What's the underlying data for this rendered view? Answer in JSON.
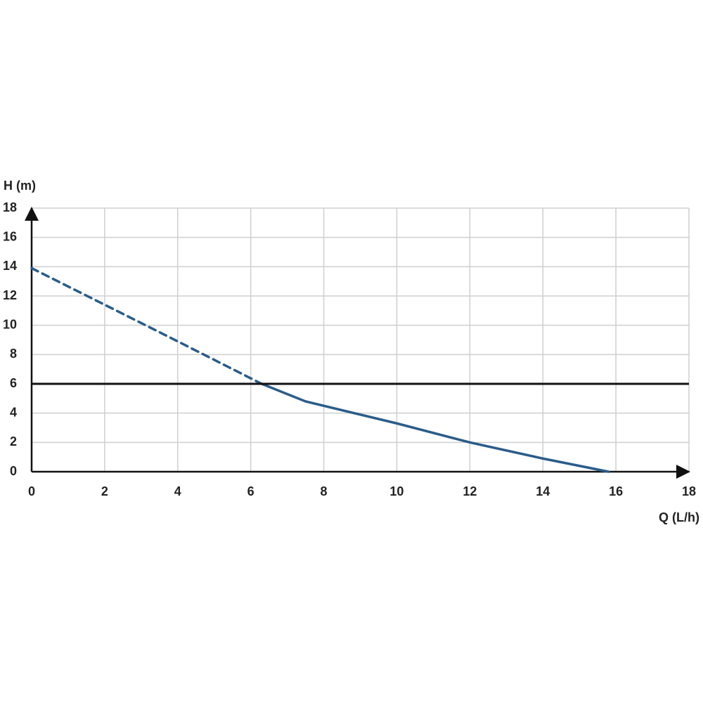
{
  "chart_data": {
    "type": "line",
    "xlabel": "Q (L/h)",
    "ylabel": "H (m)",
    "xlim": [
      0,
      18
    ],
    "xticks": [
      0,
      2,
      4,
      6,
      8,
      10,
      12,
      14,
      16,
      18
    ],
    "ylim": [
      0,
      18
    ],
    "yticks": [
      0,
      2,
      4,
      6,
      8,
      10,
      12,
      14,
      16,
      18
    ],
    "grid": true,
    "series": [
      {
        "color": "#2b5c8a",
        "dashed": true,
        "x": [
          0,
          2,
          4,
          6.3
        ],
        "values": [
          13.9,
          11.4,
          8.9,
          6
        ]
      },
      {
        "color": "#2b5c8a",
        "dashed": false,
        "x": [
          6.3,
          7.5,
          10,
          12,
          14,
          15.8
        ],
        "values": [
          6,
          4.8,
          3.3,
          2,
          0.9,
          0
        ]
      }
    ],
    "hline": 6,
    "hline_color": "#111111"
  }
}
